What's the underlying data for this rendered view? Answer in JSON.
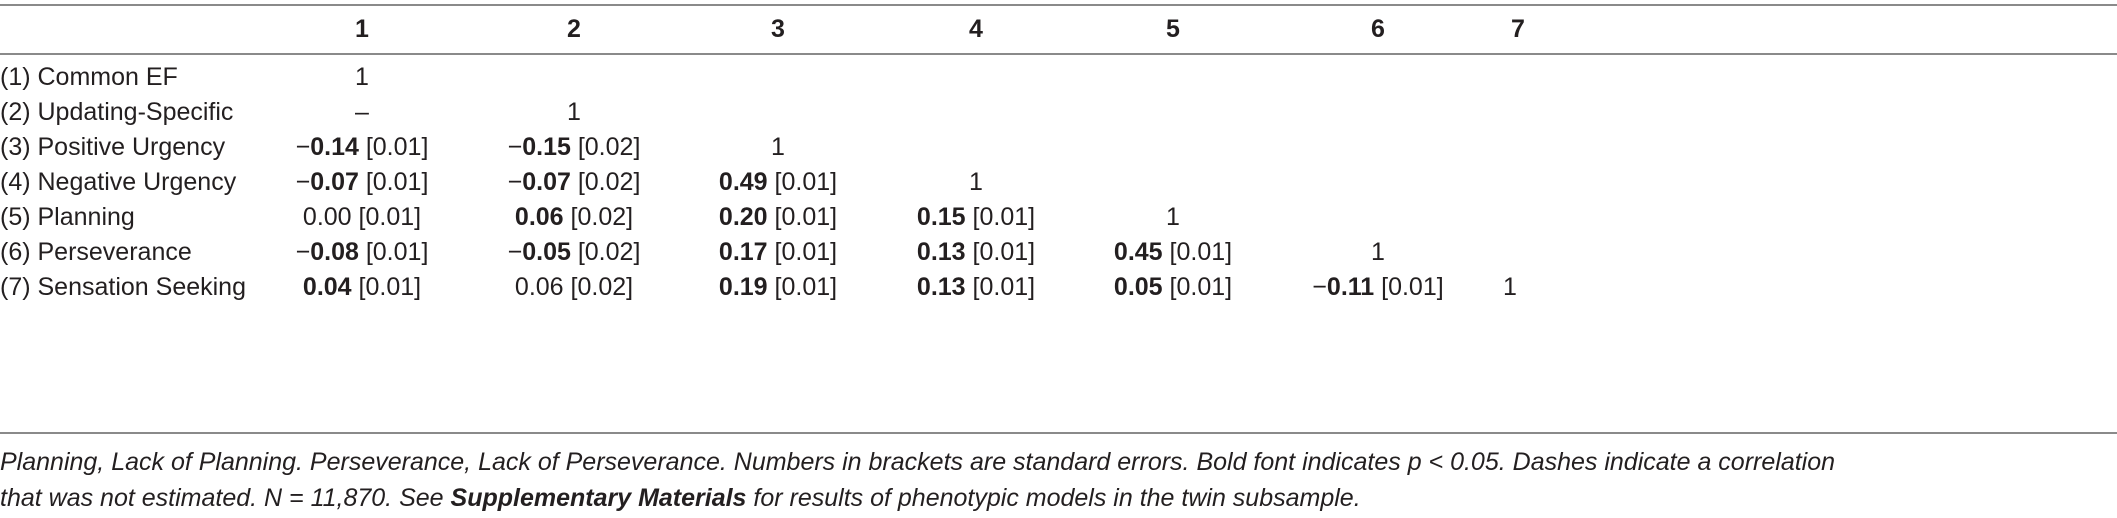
{
  "header": [
    "1",
    "2",
    "3",
    "4",
    "5",
    "6",
    "7"
  ],
  "rows": [
    {
      "label": "(1) Common EF",
      "cells": [
        {
          "est": "1",
          "bold": false,
          "se": ""
        },
        null,
        null,
        null,
        null,
        null,
        null
      ]
    },
    {
      "label": "(2) Updating-Specific",
      "cells": [
        {
          "est": "–",
          "bold": false,
          "se": ""
        },
        {
          "est": "1",
          "bold": false,
          "se": ""
        },
        null,
        null,
        null,
        null,
        null
      ]
    },
    {
      "label": "(3) Positive Urgency",
      "cells": [
        {
          "sign": "−",
          "est": "0.14",
          "bold": true,
          "se": " [0.01]"
        },
        {
          "sign": "−",
          "est": "0.15",
          "bold": true,
          "se": " [0.02]"
        },
        {
          "est": "1",
          "bold": false,
          "se": ""
        },
        null,
        null,
        null,
        null
      ]
    },
    {
      "label": "(4) Negative Urgency",
      "cells": [
        {
          "sign": "−",
          "est": "0.07",
          "bold": true,
          "se": " [0.01]"
        },
        {
          "sign": "−",
          "est": "0.07",
          "bold": true,
          "se": " [0.02]"
        },
        {
          "est": "0.49",
          "bold": true,
          "se": " [0.01]"
        },
        {
          "est": "1",
          "bold": false,
          "se": ""
        },
        null,
        null,
        null
      ]
    },
    {
      "label": "(5) Planning",
      "cells": [
        {
          "est": "0.00",
          "bold": false,
          "se": " [0.01]"
        },
        {
          "est": "0.06",
          "bold": true,
          "se": " [0.02]"
        },
        {
          "est": "0.20",
          "bold": true,
          "se": " [0.01]"
        },
        {
          "est": "0.15",
          "bold": true,
          "se": " [0.01]"
        },
        {
          "est": "1",
          "bold": false,
          "se": ""
        },
        null,
        null
      ]
    },
    {
      "label": "(6) Perseverance",
      "cells": [
        {
          "sign": "−",
          "est": "0.08",
          "bold": true,
          "se": " [0.01]"
        },
        {
          "sign": "−",
          "est": "0.05",
          "bold": true,
          "se": " [0.02]"
        },
        {
          "est": "0.17",
          "bold": true,
          "se": " [0.01]"
        },
        {
          "est": "0.13",
          "bold": true,
          "se": " [0.01]"
        },
        {
          "est": "0.45",
          "bold": true,
          "se": " [0.01]"
        },
        {
          "est": "1",
          "bold": false,
          "se": ""
        },
        null
      ]
    },
    {
      "label": "(7) Sensation Seeking",
      "cells": [
        {
          "est": "0.04",
          "bold": true,
          "se": " [0.01]"
        },
        {
          "est": "0.06",
          "bold": false,
          "se": " [0.02]"
        },
        {
          "est": "0.19",
          "bold": true,
          "se": " [0.01]"
        },
        {
          "est": "0.13",
          "bold": true,
          "se": " [0.01]"
        },
        {
          "est": "0.05",
          "bold": true,
          "se": " [0.01]"
        },
        {
          "sign": "−",
          "est": "0.11",
          "bold": true,
          "se": " [0.01]"
        },
        {
          "est": "1",
          "bold": false,
          "se": ""
        }
      ]
    }
  ],
  "note": {
    "line1": "Planning, Lack of Planning. Perseverance, Lack of Perseverance. Numbers in brackets are standard errors. Bold font indicates p < 0.05. Dashes indicate a correlation",
    "line2_before": "that was not estimated. N = 11,870. See ",
    "line2_link": "Supplementary Materials",
    "line2_after": " for results of phenotypic models in the twin subsample."
  }
}
